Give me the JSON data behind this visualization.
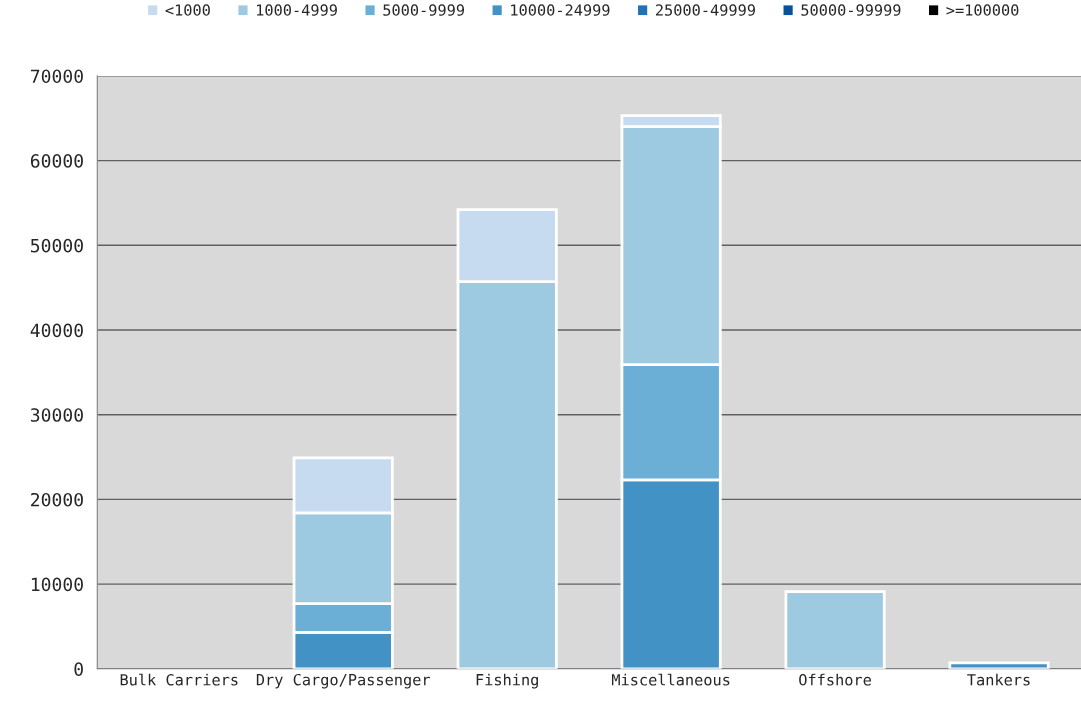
{
  "chart_data": {
    "type": "bar",
    "stacked": true,
    "categories": [
      "Bulk Carriers",
      "Dry Cargo/Passenger",
      "Fishing",
      "Miscellaneous",
      "Offshore",
      "Tankers"
    ],
    "series": [
      {
        "name": ">=100000",
        "color": "#000000",
        "values": [
          0,
          0,
          0,
          0,
          0,
          0
        ]
      },
      {
        "name": "50000-99999",
        "color": "#08519c",
        "values": [
          0,
          0,
          0,
          0,
          0,
          0
        ]
      },
      {
        "name": "25000-49999",
        "color": "#2171b5",
        "values": [
          0,
          0,
          0,
          0,
          0,
          0
        ]
      },
      {
        "name": "10000-24999",
        "color": "#4292c6",
        "values": [
          0,
          4300,
          0,
          22300,
          0,
          700
        ]
      },
      {
        "name": "5000-9999",
        "color": "#6baed6",
        "values": [
          0,
          3400,
          0,
          13600,
          0,
          0
        ]
      },
      {
        "name": "1000-4999",
        "color": "#9ecae1",
        "values": [
          0,
          10700,
          45700,
          28100,
          9100,
          0
        ]
      },
      {
        "name": "<1000",
        "color": "#c6dbef",
        "values": [
          0,
          6500,
          8500,
          1300,
          0,
          0
        ]
      }
    ],
    "ylim": [
      0,
      70000
    ],
    "yticks": [
      0,
      10000,
      20000,
      30000,
      40000,
      50000,
      60000,
      70000
    ],
    "grid": "y",
    "legend": "top"
  }
}
